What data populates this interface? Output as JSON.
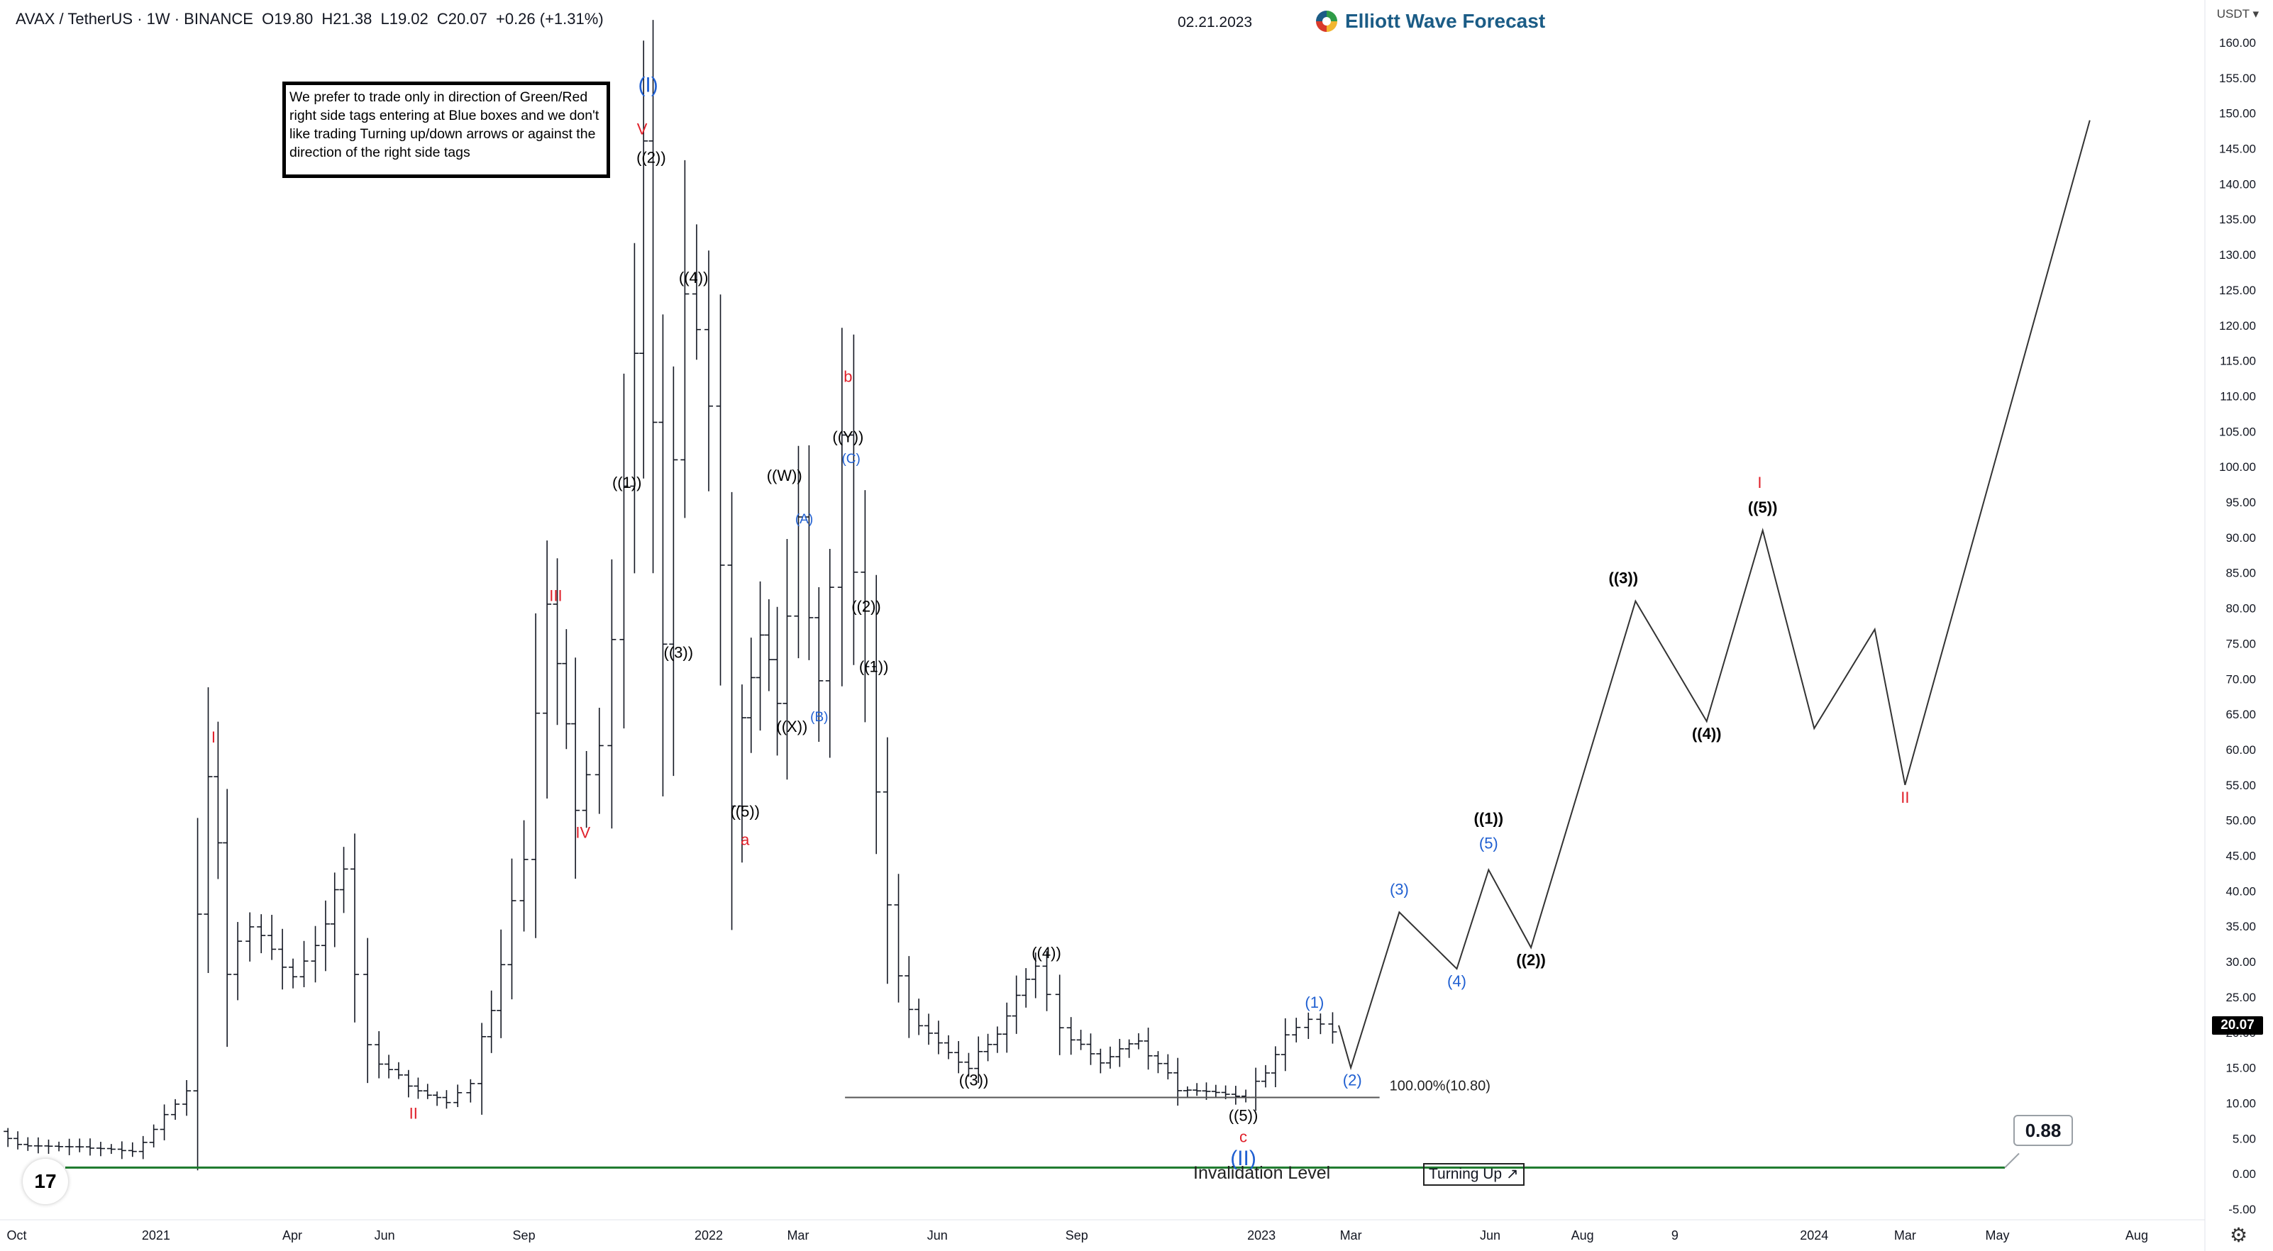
{
  "header": {
    "symbol": "AVAX / TetherUS · 1W · BINANCE",
    "open": "O19.80",
    "high": "H21.38",
    "low": "L19.02",
    "close": "C20.07",
    "change": "+0.26 (+1.31%)",
    "date": "02.21.2023",
    "brand": "Elliott Wave Forecast"
  },
  "note": "We prefer to trade only in direction of Green/Red right side tags entering at Blue boxes and we don't like trading Turning up/down arrows or against the direction of the right side tags",
  "axis_unit": "USDT",
  "current_price_tag": "20.07",
  "callout_value": "0.88",
  "invalidation_label": "Invalidation Level",
  "turning_up_label": "Turning Up ↗",
  "fib_label": "100.00%(10.80)",
  "colors": {
    "candle": "#131722",
    "wave_red": "#e0202a",
    "wave_blue": "#1f5fd1",
    "wave_black": "#000000",
    "invalidation_green": "#1c7a2c",
    "brand": "#1b5c86"
  },
  "chart_data": {
    "type": "line",
    "title": "AVAX / TetherUS · 1W · BINANCE",
    "y_ticks": [
      -5,
      0,
      5,
      10,
      15,
      20,
      25,
      30,
      35,
      40,
      45,
      50,
      55,
      60,
      65,
      70,
      75,
      80,
      85,
      90,
      95,
      100,
      105,
      110,
      115,
      120,
      125,
      130,
      135,
      140,
      145,
      150,
      155,
      160
    ],
    "ylim": [
      -6.5,
      162
    ],
    "x_range": [
      "2020-09-20",
      "2024-09-15"
    ],
    "x_ticks": [
      {
        "label": "Oct",
        "date": "2020-10-01"
      },
      {
        "label": "2021",
        "date": "2021-01-01"
      },
      {
        "label": "Apr",
        "date": "2021-04-01"
      },
      {
        "label": "Jun",
        "date": "2021-06-01"
      },
      {
        "label": "Sep",
        "date": "2021-09-01"
      },
      {
        "label": "2022",
        "date": "2022-01-01"
      },
      {
        "label": "Mar",
        "date": "2022-03-01"
      },
      {
        "label": "Jun",
        "date": "2022-06-01"
      },
      {
        "label": "Sep",
        "date": "2022-09-01"
      },
      {
        "label": "2023",
        "date": "2023-01-01"
      },
      {
        "label": "Mar",
        "date": "2023-03-01"
      },
      {
        "label": "Jun",
        "date": "2023-06-01"
      },
      {
        "label": "Aug",
        "date": "2023-08-01"
      },
      {
        "label": "9",
        "date": "2023-10-01"
      },
      {
        "label": "2024",
        "date": "2024-01-01"
      },
      {
        "label": "Mar",
        "date": "2024-03-01"
      },
      {
        "label": "May",
        "date": "2024-05-01"
      },
      {
        "label": "Aug",
        "date": "2024-08-01"
      }
    ],
    "price_path": [
      [
        "2020-09-22",
        6.0
      ],
      [
        "2020-10-05",
        4.0
      ],
      [
        "2020-11-15",
        3.8
      ],
      [
        "2020-12-20",
        3.2
      ],
      [
        "2021-01-10",
        8.0
      ],
      [
        "2021-01-25",
        12.0
      ],
      [
        "2021-02-08",
        60.0
      ],
      [
        "2021-02-20",
        30.0
      ],
      [
        "2021-03-08",
        35.0
      ],
      [
        "2021-04-05",
        28.0
      ],
      [
        "2021-04-20",
        32.0
      ],
      [
        "2021-05-08",
        43.0
      ],
      [
        "2021-05-25",
        17.0
      ],
      [
        "2021-06-20",
        12.5
      ],
      [
        "2021-07-15",
        10.0
      ],
      [
        "2021-08-01",
        13.0
      ],
      [
        "2021-08-20",
        30.0
      ],
      [
        "2021-09-05",
        45.0
      ],
      [
        "2021-09-20",
        80.0
      ],
      [
        "2021-10-08",
        53.0
      ],
      [
        "2021-10-25",
        60.0
      ],
      [
        "2021-11-10",
        95.0
      ],
      [
        "2021-11-22",
        145.0
      ],
      [
        "2021-12-05",
        77.0
      ],
      [
        "2021-12-20",
        128.0
      ],
      [
        "2022-01-05",
        110.0
      ],
      [
        "2022-01-20",
        55.0
      ],
      [
        "2022-02-07",
        78.0
      ],
      [
        "2022-02-18",
        66.0
      ],
      [
        "2022-03-05",
        91.0
      ],
      [
        "2022-03-18",
        68.0
      ],
      [
        "2022-04-03",
        103.0
      ],
      [
        "2022-04-18",
        72.0
      ],
      [
        "2022-05-10",
        25.0
      ],
      [
        "2022-06-05",
        18.0
      ],
      [
        "2022-06-25",
        15.0
      ],
      [
        "2022-07-20",
        22.0
      ],
      [
        "2022-08-08",
        30.0
      ],
      [
        "2022-08-25",
        20.0
      ],
      [
        "2022-09-20",
        16.0
      ],
      [
        "2022-10-15",
        19.0
      ],
      [
        "2022-11-10",
        12.0
      ],
      [
        "2022-12-05",
        11.5
      ],
      [
        "2022-12-25",
        10.8
      ],
      [
        "2023-01-20",
        19.0
      ],
      [
        "2023-02-05",
        22.0
      ],
      [
        "2023-02-21",
        20.07
      ]
    ],
    "projection": [
      [
        "2023-02-21",
        21.0
      ],
      [
        "2023-03-01",
        15.0
      ],
      [
        "2023-04-02",
        37.0
      ],
      [
        "2023-05-10",
        29.0
      ],
      [
        "2023-05-31",
        43.0
      ],
      [
        "2023-06-28",
        32.0
      ],
      [
        "2023-09-05",
        81.0
      ],
      [
        "2023-10-22",
        64.0
      ],
      [
        "2023-11-28",
        91.0
      ],
      [
        "2024-01-01",
        63.0
      ],
      [
        "2024-02-10",
        77.0
      ],
      [
        "2024-03-01",
        55.0
      ],
      [
        "2024-07-01",
        149.0
      ]
    ],
    "wave_labels": [
      {
        "t": "I",
        "date": "2021-02-08",
        "y": 61,
        "color": "wave_red"
      },
      {
        "t": "II",
        "date": "2021-06-20",
        "y": 7.8,
        "color": "wave_red"
      },
      {
        "t": "III",
        "date": "2021-09-22",
        "y": 81,
        "color": "wave_red"
      },
      {
        "t": "IV",
        "date": "2021-10-10",
        "y": 47.5,
        "color": "wave_red"
      },
      {
        "t": "V",
        "date": "2021-11-18",
        "y": 147,
        "color": "wave_red"
      },
      {
        "t": "(I)",
        "date": "2021-11-22",
        "y": 153,
        "color": "wave_blue",
        "big": true
      },
      {
        "t": "((2))",
        "date": "2021-11-24",
        "y": 143,
        "color": "wave_black"
      },
      {
        "t": "((1))",
        "date": "2021-11-08",
        "y": 97,
        "color": "wave_black"
      },
      {
        "t": "((4))",
        "date": "2021-12-22",
        "y": 126,
        "color": "wave_black"
      },
      {
        "t": "((3))",
        "date": "2021-12-12",
        "y": 73,
        "color": "wave_black"
      },
      {
        "t": "((5))",
        "date": "2022-01-25",
        "y": 50.5,
        "color": "wave_black"
      },
      {
        "t": "a",
        "date": "2022-01-25",
        "y": 46.5,
        "color": "wave_red"
      },
      {
        "t": "((W))",
        "date": "2022-02-20",
        "y": 98,
        "color": "wave_black"
      },
      {
        "t": "(A)",
        "date": "2022-03-05",
        "y": 92,
        "color": "wave_blue",
        "small": true
      },
      {
        "t": "((X))",
        "date": "2022-02-25",
        "y": 62.5,
        "color": "wave_black"
      },
      {
        "t": "(B)",
        "date": "2022-03-15",
        "y": 64,
        "color": "wave_blue",
        "small": true
      },
      {
        "t": "b",
        "date": "2022-04-03",
        "y": 112,
        "color": "wave_red"
      },
      {
        "t": "((Y))",
        "date": "2022-04-03",
        "y": 103.5,
        "color": "wave_black"
      },
      {
        "t": "(C)",
        "date": "2022-04-05",
        "y": 100.5,
        "color": "wave_blue",
        "small": true
      },
      {
        "t": "((2))",
        "date": "2022-04-15",
        "y": 79.5,
        "color": "wave_black"
      },
      {
        "t": "((1))",
        "date": "2022-04-20",
        "y": 71,
        "color": "wave_black"
      },
      {
        "t": "((4))",
        "date": "2022-08-12",
        "y": 30.5,
        "color": "wave_black"
      },
      {
        "t": "((3))",
        "date": "2022-06-25",
        "y": 12.5,
        "color": "wave_black"
      },
      {
        "t": "((5))",
        "date": "2022-12-20",
        "y": 7.5,
        "color": "wave_black"
      },
      {
        "t": "c",
        "date": "2022-12-20",
        "y": 4.5,
        "color": "wave_red"
      },
      {
        "t": "(II)",
        "date": "2022-12-20",
        "y": 1.2,
        "color": "wave_blue",
        "big": true
      },
      {
        "t": "(1)",
        "date": "2023-02-05",
        "y": 23.5,
        "color": "wave_blue"
      },
      {
        "t": "(2)",
        "date": "2023-03-02",
        "y": 12.5,
        "color": "wave_blue"
      },
      {
        "t": "(3)",
        "date": "2023-04-02",
        "y": 39.5,
        "color": "wave_blue"
      },
      {
        "t": "(4)",
        "date": "2023-05-10",
        "y": 26.5,
        "color": "wave_blue"
      },
      {
        "t": "(5)",
        "date": "2023-05-31",
        "y": 46,
        "color": "wave_blue"
      },
      {
        "t": "((1))",
        "date": "2023-05-31",
        "y": 49.5,
        "color": "wave_black",
        "bold": true
      },
      {
        "t": "((2))",
        "date": "2023-06-28",
        "y": 29.5,
        "color": "wave_black",
        "bold": true
      },
      {
        "t": "((3))",
        "date": "2023-08-28",
        "y": 83.5,
        "color": "wave_black",
        "bold": true
      },
      {
        "t": "((4))",
        "date": "2023-10-22",
        "y": 61.5,
        "color": "wave_black",
        "bold": true
      },
      {
        "t": "((5))",
        "date": "2023-11-28",
        "y": 93.5,
        "color": "wave_black",
        "bold": true
      },
      {
        "t": "I",
        "date": "2023-11-26",
        "y": 97,
        "color": "wave_red"
      },
      {
        "t": "II",
        "date": "2024-03-01",
        "y": 52.5,
        "color": "wave_red"
      }
    ],
    "fib_line": {
      "y": 10.8,
      "start": "2022-04-01",
      "end": "2023-03-20"
    },
    "invalidation": {
      "y": 0.88
    }
  }
}
